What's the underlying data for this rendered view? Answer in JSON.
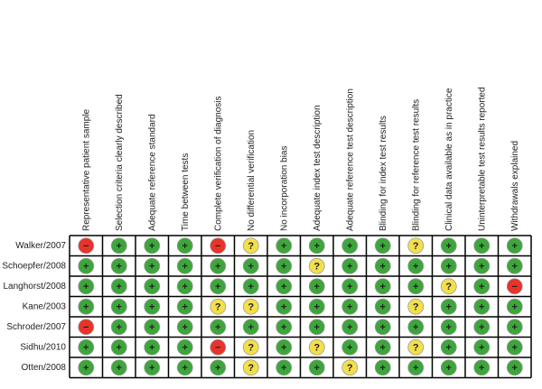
{
  "columns": [
    "Representative patient sample",
    "Selection criteria clearly described",
    "Adequate reference standard",
    "Time between tests",
    "Complete verification of diagnosis",
    "No differential verification",
    "No incorporation bias",
    "Adequate index test description",
    "Adequate reference test description",
    "Blinding for index test results",
    "Blinding for reference test results",
    "Clinical data available as in practice",
    "Uninterpretable test results reported",
    "Withdrawals explained"
  ],
  "rows": [
    {
      "name": "Walker/2007",
      "cells": [
        "−",
        "+",
        "+",
        "+",
        "−",
        "?",
        "+",
        "+",
        "+",
        "+",
        "?",
        "+",
        "+",
        "+"
      ]
    },
    {
      "name": "Schoepfer/2008",
      "cells": [
        "+",
        "+",
        "+",
        "+",
        "+",
        "+",
        "+",
        "?",
        "+",
        "+",
        "+",
        "+",
        "+",
        "+"
      ]
    },
    {
      "name": "Langhorst/2008",
      "cells": [
        "+",
        "+",
        "+",
        "+",
        "+",
        "+",
        "+",
        "+",
        "+",
        "+",
        "+",
        "?",
        "+",
        "−"
      ]
    },
    {
      "name": "Kane/2003",
      "cells": [
        "+",
        "+",
        "+",
        "+",
        "?",
        "?",
        "+",
        "+",
        "+",
        "+",
        "?",
        "+",
        "+",
        "+"
      ]
    },
    {
      "name": "Schroder/2007",
      "cells": [
        "−",
        "+",
        "+",
        "+",
        "+",
        "+",
        "+",
        "+",
        "+",
        "+",
        "+",
        "+",
        "+",
        "+"
      ]
    },
    {
      "name": "Sidhu/2010",
      "cells": [
        "+",
        "+",
        "+",
        "+",
        "−",
        "?",
        "+",
        "?",
        "+",
        "+",
        "?",
        "+",
        "+",
        "+"
      ]
    },
    {
      "name": "Otten/2008",
      "cells": [
        "+",
        "+",
        "+",
        "+",
        "+",
        "?",
        "+",
        "+",
        "?",
        "+",
        "+",
        "+",
        "+",
        "+"
      ]
    }
  ]
}
